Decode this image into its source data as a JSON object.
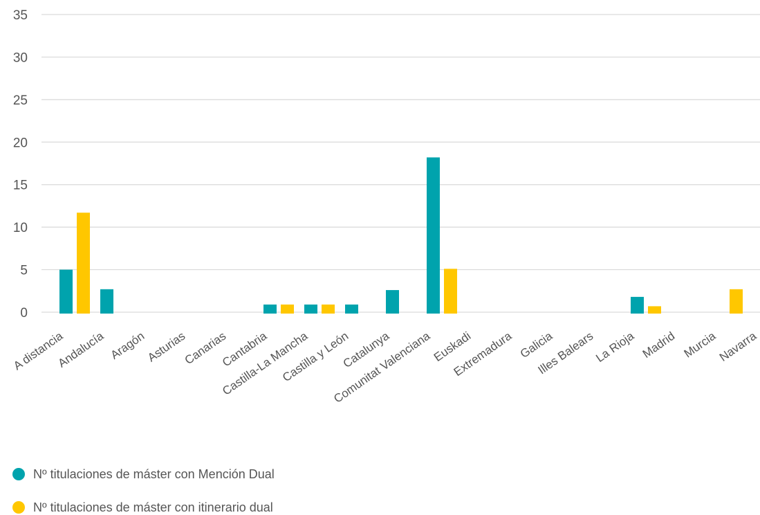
{
  "chart_data": {
    "type": "bar",
    "categories": [
      "A distancia",
      "Andalucía",
      "Aragón",
      "Asturias",
      "Canarias",
      "Cantabria",
      "Castilla-La Mancha",
      "Castilla y León",
      "Catalunya",
      "Comunitat Valenciana",
      "Euskadi",
      "Extremadura",
      "Galicia",
      "Illes Balears",
      "La Rioja",
      "Madrid",
      "Murcia",
      "Navarra"
    ],
    "series": [
      {
        "name": "Nº titulaciones de máster con Mención Dual",
        "color": "#00A3AD",
        "values": [
          0,
          5,
          2.7,
          0,
          0,
          0,
          0.9,
          0.9,
          0.9,
          2.6,
          18.2,
          0,
          0,
          0,
          0,
          1.8,
          0,
          0
        ]
      },
      {
        "name": "Nº titulaciones de máster con itinerario dual",
        "color": "#FFC700",
        "values": [
          0,
          11.7,
          0,
          0,
          0,
          0,
          0.9,
          0.9,
          0,
          0,
          5.1,
          0,
          0,
          0,
          0,
          0.7,
          0,
          2.7
        ]
      }
    ],
    "yticks": [
      "0",
      "5",
      "10",
      "15",
      "20",
      "25",
      "30",
      "35"
    ],
    "ylim": [
      0,
      35
    ],
    "grid": true,
    "legend_position": "bottom-left"
  }
}
